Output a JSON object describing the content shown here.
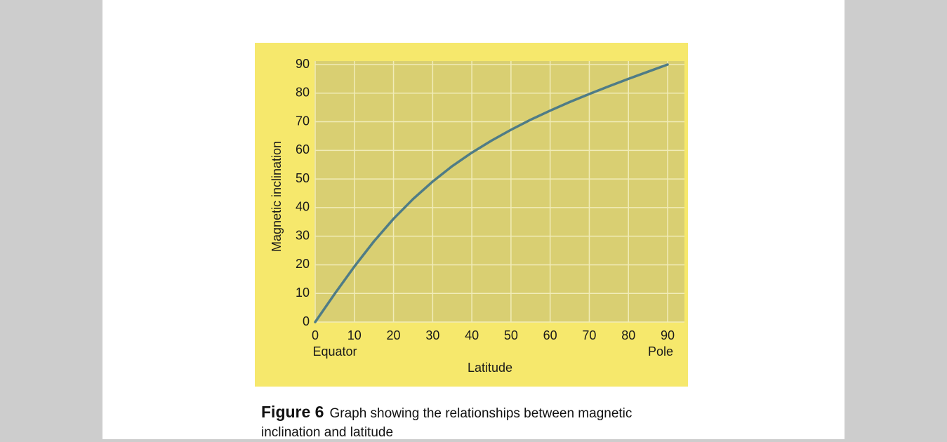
{
  "chart_data": {
    "type": "line",
    "x_label": "Latitude",
    "y_label": "Magnetic inclination",
    "x_end_labels": [
      "Equator",
      "Pole"
    ],
    "x": [
      0,
      5,
      10,
      15,
      20,
      25,
      30,
      35,
      40,
      45,
      50,
      55,
      60,
      65,
      70,
      75,
      80,
      85,
      90
    ],
    "values": [
      0,
      9.9,
      19.4,
      28.2,
      36.1,
      43.0,
      49.1,
      54.5,
      59.2,
      63.4,
      67.2,
      70.7,
      73.9,
      76.9,
      79.7,
      82.4,
      85.0,
      87.5,
      90
    ],
    "color": "#4f7c86",
    "xlim": [
      0,
      90
    ],
    "ylim": [
      0,
      90
    ],
    "xticks": [
      0,
      10,
      20,
      30,
      40,
      50,
      60,
      70,
      80,
      90
    ],
    "yticks": [
      0,
      10,
      20,
      30,
      40,
      50,
      60,
      70,
      80,
      90
    ],
    "grid": true
  },
  "caption": {
    "label": "Figure 6",
    "text": "Graph showing the relationships between magnetic inclination and latitude"
  }
}
